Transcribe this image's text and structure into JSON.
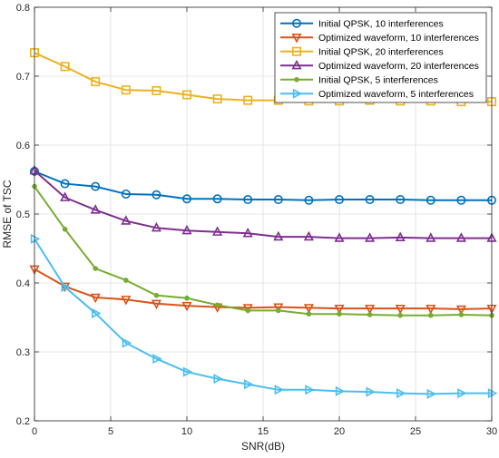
{
  "chart_data": {
    "type": "line",
    "xlabel": "SNR(dB)",
    "ylabel": "RMSE of TSC",
    "xlim": [
      0,
      30
    ],
    "ylim": [
      0.2,
      0.8
    ],
    "xticks": [
      0,
      5,
      10,
      15,
      20,
      25,
      30
    ],
    "yticks": [
      0.2,
      0.3,
      0.4,
      0.5,
      0.6,
      0.7,
      0.8
    ],
    "grid": true,
    "legend_position": "top-right",
    "x": [
      0,
      2,
      4,
      6,
      8,
      10,
      12,
      14,
      16,
      18,
      20,
      22,
      24,
      26,
      28,
      30
    ],
    "series": [
      {
        "name": "Initial QPSK, 10 interferences",
        "color": "#0072BD",
        "marker": "circle",
        "values": [
          0.562,
          0.544,
          0.54,
          0.529,
          0.528,
          0.522,
          0.522,
          0.521,
          0.521,
          0.52,
          0.521,
          0.521,
          0.521,
          0.52,
          0.52,
          0.52
        ]
      },
      {
        "name": "Optimized waveform, 10 interferences",
        "color": "#D95319",
        "marker": "triangle-down",
        "values": [
          0.42,
          0.395,
          0.379,
          0.376,
          0.37,
          0.367,
          0.365,
          0.364,
          0.365,
          0.364,
          0.363,
          0.363,
          0.363,
          0.363,
          0.362,
          0.363
        ]
      },
      {
        "name": "Initial QPSK, 20 interferences",
        "color": "#EDB120",
        "marker": "square",
        "values": [
          0.734,
          0.714,
          0.692,
          0.68,
          0.679,
          0.673,
          0.667,
          0.665,
          0.665,
          0.664,
          0.664,
          0.665,
          0.664,
          0.664,
          0.663,
          0.663
        ]
      },
      {
        "name": "Optimized waveform, 20 interferences",
        "color": "#7E2F8E",
        "marker": "triangle-up",
        "values": [
          0.563,
          0.524,
          0.506,
          0.49,
          0.48,
          0.476,
          0.474,
          0.472,
          0.467,
          0.467,
          0.465,
          0.465,
          0.466,
          0.465,
          0.465,
          0.465
        ]
      },
      {
        "name": "Initial QPSK, 5 interferences",
        "color": "#77AC30",
        "marker": "dot",
        "values": [
          0.54,
          0.478,
          0.421,
          0.404,
          0.382,
          0.378,
          0.368,
          0.36,
          0.36,
          0.355,
          0.355,
          0.354,
          0.353,
          0.353,
          0.354,
          0.353
        ]
      },
      {
        "name": "Optimized waveform, 5 interferences",
        "color": "#4DBEEE",
        "marker": "triangle-right",
        "values": [
          0.464,
          0.394,
          0.356,
          0.313,
          0.29,
          0.271,
          0.261,
          0.253,
          0.245,
          0.245,
          0.243,
          0.242,
          0.24,
          0.239,
          0.24,
          0.24
        ]
      }
    ]
  }
}
